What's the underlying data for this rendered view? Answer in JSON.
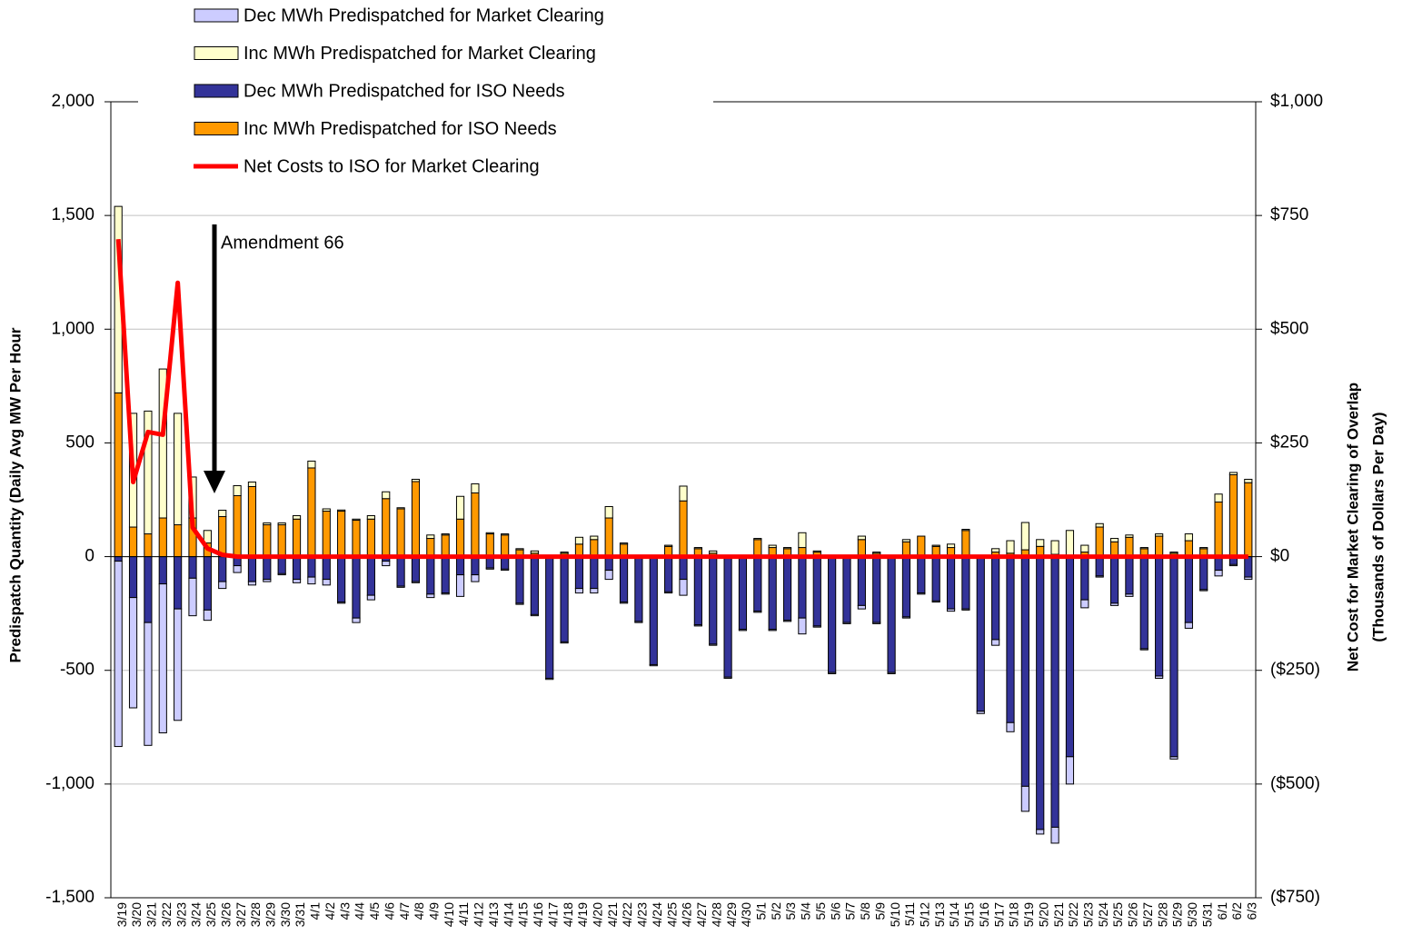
{
  "chart_data": {
    "type": "bar",
    "stacked": true,
    "annotation": "Amendment 66",
    "ylabel": "Predispatch Quantity (Daily Avg MW Per Hour",
    "y2label": [
      "Net Cost for Market Clearing of Overlap",
      "(Thousands of Dollars Per Day)"
    ],
    "categories": [
      "3/19",
      "3/20",
      "3/21",
      "3/22",
      "3/23",
      "3/24",
      "3/25",
      "3/26",
      "3/27",
      "3/28",
      "3/29",
      "3/30",
      "3/31",
      "4/1",
      "4/2",
      "4/3",
      "4/4",
      "4/5",
      "4/6",
      "4/7",
      "4/8",
      "4/9",
      "4/10",
      "4/11",
      "4/12",
      "4/13",
      "4/14",
      "4/15",
      "4/16",
      "4/17",
      "4/18",
      "4/19",
      "4/20",
      "4/21",
      "4/22",
      "4/23",
      "4/24",
      "4/25",
      "4/26",
      "4/27",
      "4/28",
      "4/29",
      "4/30",
      "5/1",
      "5/2",
      "5/3",
      "5/4",
      "5/5",
      "5/6",
      "5/7",
      "5/8",
      "5/9",
      "5/10",
      "5/11",
      "5/12",
      "5/13",
      "5/14",
      "5/15",
      "5/16",
      "5/17",
      "5/18",
      "5/19",
      "5/20",
      "5/21",
      "5/22",
      "5/23",
      "5/24",
      "5/25",
      "5/26",
      "5/27",
      "5/28",
      "5/29",
      "5/30",
      "5/31",
      "6/1",
      "6/2",
      "6/3"
    ],
    "series": [
      {
        "name": "Dec MWh Predispatched for Market Clearing",
        "color": "#ccccff",
        "values": [
          -815,
          -485,
          -540,
          -655,
          -490,
          -165,
          -45,
          -30,
          -30,
          -15,
          -10,
          -5,
          -15,
          -30,
          -25,
          -5,
          -20,
          -20,
          -20,
          -5,
          -5,
          -15,
          -5,
          -95,
          -30,
          -5,
          -5,
          -5,
          -5,
          -5,
          -5,
          -20,
          -20,
          -40,
          -5,
          -5,
          -5,
          -5,
          -70,
          -5,
          -5,
          -5,
          -5,
          -5,
          -5,
          -5,
          -70,
          -5,
          -5,
          -5,
          -15,
          -5,
          -5,
          -5,
          -5,
          -5,
          -10,
          -5,
          -10,
          -25,
          -40,
          -110,
          -20,
          -70,
          -120,
          -35,
          -5,
          -10,
          -10,
          -5,
          -10,
          -10,
          -25,
          -5,
          -25,
          -5,
          -10
        ]
      },
      {
        "name": "Inc MWh Predispatched for Market Clearing",
        "color": "#ffffcc",
        "values": [
          820,
          500,
          540,
          655,
          490,
          180,
          55,
          28,
          44,
          20,
          8,
          8,
          15,
          30,
          10,
          5,
          5,
          15,
          30,
          5,
          10,
          15,
          5,
          100,
          40,
          5,
          5,
          5,
          10,
          0,
          5,
          30,
          15,
          50,
          5,
          5,
          0,
          5,
          65,
          5,
          10,
          0,
          0,
          5,
          10,
          5,
          65,
          5,
          0,
          0,
          15,
          5,
          0,
          10,
          0,
          5,
          15,
          5,
          0,
          15,
          55,
          120,
          30,
          60,
          110,
          30,
          15,
          15,
          10,
          5,
          10,
          5,
          30,
          5,
          35,
          10,
          15
        ]
      },
      {
        "name": "Dec MWh Predispatched for ISO Needs",
        "color": "#333399",
        "values": [
          -20,
          -180,
          -290,
          -120,
          -230,
          -95,
          -235,
          -110,
          -40,
          -110,
          -100,
          -75,
          -100,
          -90,
          -100,
          -200,
          -270,
          -170,
          -20,
          -130,
          -110,
          -165,
          -160,
          -80,
          -80,
          -50,
          -55,
          -205,
          -255,
          -535,
          -375,
          -140,
          -140,
          -60,
          -200,
          -285,
          -475,
          -155,
          -100,
          -300,
          -385,
          -530,
          -320,
          -240,
          -320,
          -280,
          -270,
          -305,
          -510,
          -290,
          -215,
          -290,
          -510,
          -265,
          -160,
          -195,
          -230,
          -230,
          -680,
          -365,
          -730,
          -1010,
          -1200,
          -1190,
          -880,
          -190,
          -85,
          -205,
          -165,
          -405,
          -525,
          -880,
          -290,
          -145,
          -60,
          -35,
          -90
        ]
      },
      {
        "name": "Inc MWh Predispatched for ISO Needs",
        "color": "#ff9900",
        "values": [
          720,
          130,
          100,
          170,
          140,
          170,
          60,
          176,
          268,
          308,
          140,
          140,
          165,
          390,
          200,
          200,
          160,
          165,
          255,
          210,
          330,
          80,
          95,
          165,
          280,
          100,
          95,
          30,
          15,
          5,
          15,
          55,
          75,
          170,
          55,
          0,
          0,
          45,
          245,
          35,
          15,
          0,
          0,
          75,
          40,
          35,
          40,
          20,
          0,
          0,
          75,
          15,
          0,
          65,
          90,
          45,
          40,
          115,
          0,
          20,
          15,
          30,
          45,
          10,
          5,
          20,
          130,
          65,
          85,
          35,
          90,
          15,
          70,
          35,
          240,
          360,
          325
        ]
      },
      {
        "name": "Net Costs to ISO for Market Clearing",
        "color": "#ff0000",
        "type": "line",
        "axis": "y2",
        "values": [
          698,
          164,
          274,
          268,
          602,
          64,
          18,
          4,
          0,
          0,
          0,
          0,
          0,
          0,
          0,
          0,
          0,
          0,
          0,
          0,
          0,
          0,
          0,
          0,
          0,
          0,
          0,
          0,
          0,
          0,
          0,
          0,
          0,
          0,
          0,
          0,
          0,
          0,
          0,
          0,
          0,
          0,
          0,
          0,
          0,
          0,
          0,
          0,
          0,
          0,
          0,
          0,
          0,
          0,
          0,
          0,
          0,
          0,
          0,
          0,
          0,
          0,
          0,
          0,
          0,
          0,
          0,
          0,
          0,
          0,
          0,
          0,
          0,
          0,
          0,
          0,
          0
        ]
      }
    ],
    "ylim": [
      -1500,
      2000
    ],
    "yticks": [
      {
        "value": -1500,
        "label": "-1,500"
      },
      {
        "value": -1000,
        "label": "-1,000"
      },
      -500,
      0,
      500,
      {
        "value": 1000,
        "label": "1,000"
      },
      {
        "value": 1500,
        "label": "1,500"
      },
      {
        "value": 2000,
        "label": "2,000"
      }
    ],
    "y2lim": [
      -750,
      1000
    ],
    "y2ticks": [
      {
        "value": -750,
        "label": "($750)"
      },
      {
        "value": -500,
        "label": "($500)"
      },
      {
        "value": -250,
        "label": "($250)"
      },
      {
        "value": 0,
        "label": "$0"
      },
      {
        "value": 250,
        "label": "$250"
      },
      {
        "value": 500,
        "label": "$500"
      },
      {
        "value": 750,
        "label": "$750"
      },
      {
        "value": 1000,
        "label": "$1,000"
      }
    ],
    "grid": true
  }
}
